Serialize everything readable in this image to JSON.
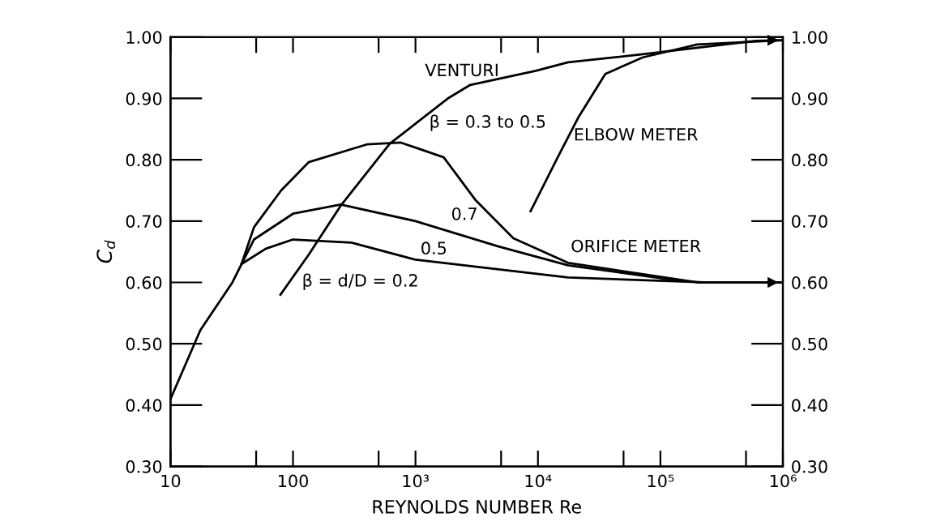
{
  "chart_data": {
    "type": "line",
    "xlabel": "REYNOLDS NUMBER Re",
    "ylabel": "C$_{d}$",
    "log": "x",
    "grid": false,
    "marker": "none",
    "line_style": "solid",
    "xlim": [
      10,
      1000000
    ],
    "xticks": [
      10,
      {
        "value": 50,
        "label": null
      },
      100,
      {
        "value": 500,
        "label": null
      },
      {
        "value": 1000,
        "label": "10³"
      },
      {
        "value": 5000,
        "label": null
      },
      {
        "value": 10000,
        "label": "10⁴"
      },
      {
        "value": 50000,
        "label": null
      },
      {
        "value": 100000,
        "label": "10⁵"
      },
      {
        "value": 500000,
        "label": null
      },
      {
        "value": 1000000,
        "label": "10⁶"
      }
    ],
    "ylim": [
      0.3,
      1.0
    ],
    "yticks": [
      {
        "value": 0.3,
        "label": "0.30"
      },
      {
        "value": 0.4,
        "label": "0.40"
      },
      {
        "value": 0.5,
        "label": "0.50"
      },
      {
        "value": 0.6,
        "label": "0.60"
      },
      {
        "value": 0.7,
        "label": "0.70"
      },
      {
        "value": 0.8,
        "label": "0.80"
      },
      {
        "value": 0.9,
        "label": "0.90"
      },
      {
        "value": 1.0,
        "label": "1.00"
      }
    ],
    "y2lim": [
      0.3,
      1.0
    ],
    "y2ticks": [
      {
        "value": 0.3,
        "label": "0.30"
      },
      {
        "value": 0.4,
        "label": "0.40"
      },
      {
        "value": 0.5,
        "label": "0.50"
      },
      {
        "value": 0.6,
        "label": "0.60"
      },
      {
        "value": 0.7,
        "label": "0.70"
      },
      {
        "value": 0.8,
        "label": "0.80"
      },
      {
        "value": 0.9,
        "label": "0.90"
      },
      {
        "value": 1.0,
        "label": "1.00"
      }
    ],
    "series": [
      {
        "color": "#000000",
        "x": [
          79,
          134,
          245,
          616,
          1870,
          2800,
          9600,
          17600,
          72000,
          600000,
          1000000
        ],
        "values": [
          0.58,
          0.645,
          0.725,
          0.826,
          0.901,
          0.922,
          0.945,
          0.959,
          0.972,
          0.994,
          0.995
        ]
      },
      {
        "color": "#000000",
        "x": [
          10,
          17.5,
          32,
          38,
          48,
          80,
          134,
          400,
          760,
          1700,
          3100,
          6300,
          17600,
          200000,
          1000000
        ],
        "values": [
          0.41,
          0.522,
          0.6,
          0.63,
          0.69,
          0.75,
          0.796,
          0.825,
          0.828,
          0.804,
          0.734,
          0.672,
          0.632,
          0.6,
          0.6
        ]
      },
      {
        "color": "#000000",
        "x": [
          38,
          48,
          100,
          245,
          1000,
          4700,
          17600,
          150000
        ],
        "values": [
          0.63,
          0.67,
          0.712,
          0.727,
          0.7,
          0.659,
          0.628,
          0.602
        ]
      },
      {
        "color": "#000000",
        "x": [
          38,
          60,
          100,
          300,
          1000,
          17600,
          250000
        ],
        "values": [
          0.63,
          0.655,
          0.67,
          0.665,
          0.637,
          0.608,
          0.6
        ]
      },
      {
        "color": "#000000",
        "x": [
          8700,
          14500,
          21500,
          35500,
          72000,
          200000,
          1000000
        ],
        "values": [
          0.716,
          0.804,
          0.87,
          0.94,
          0.967,
          0.988,
          0.995
        ]
      }
    ],
    "annotations": [
      "VENTURI",
      "β = 0.3 to 0.5",
      "0.7",
      "0.5",
      "β = d/D = 0.2",
      "ELBOW METER",
      "ORIFICE METER"
    ]
  }
}
